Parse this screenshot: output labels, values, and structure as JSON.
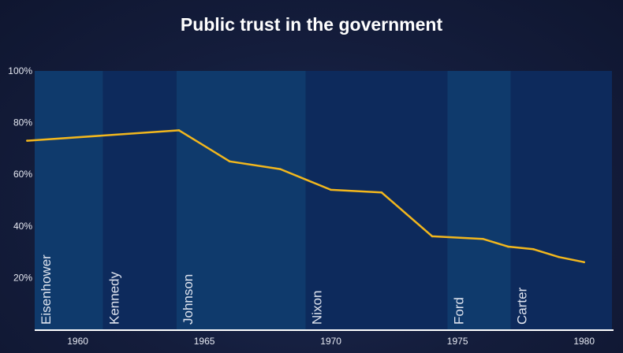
{
  "chart_data": {
    "type": "line",
    "title": "Public trust in the government",
    "xlabel": "",
    "ylabel": "",
    "xlim": [
      1958.3,
      1981.1
    ],
    "ylim": [
      0,
      100
    ],
    "x_ticks": [
      1960,
      1965,
      1970,
      1975,
      1980
    ],
    "y_ticks": [
      20,
      40,
      60,
      80,
      100
    ],
    "y_tick_labels": [
      "20%",
      "40%",
      "60%",
      "80%",
      "100%"
    ],
    "grid": false,
    "legend": "none",
    "line_color": "#f2b71d",
    "series": [
      {
        "x": [
          1958,
          1964,
          1966,
          1968,
          1970,
          1972,
          1974,
          1976,
          1977,
          1978,
          1979,
          1980
        ],
        "values": [
          73,
          77,
          65,
          62,
          54,
          53,
          36,
          35,
          32,
          31,
          28,
          26
        ]
      }
    ],
    "eras": [
      {
        "name": "Eisenhower",
        "start": 1958.3,
        "end": 1961,
        "color": "#0f3a6c"
      },
      {
        "name": "Kennedy",
        "start": 1961,
        "end": 1963.9,
        "color": "#0d2a5c"
      },
      {
        "name": "Johnson",
        "start": 1963.9,
        "end": 1969,
        "color": "#0f3a6c"
      },
      {
        "name": "Nixon",
        "start": 1969,
        "end": 1974.6,
        "color": "#0d2a5c"
      },
      {
        "name": "Ford",
        "start": 1974.6,
        "end": 1977.1,
        "color": "#0f3a6c"
      },
      {
        "name": "Carter",
        "start": 1977.1,
        "end": 1981.1,
        "color": "#0d2a5c"
      }
    ]
  }
}
